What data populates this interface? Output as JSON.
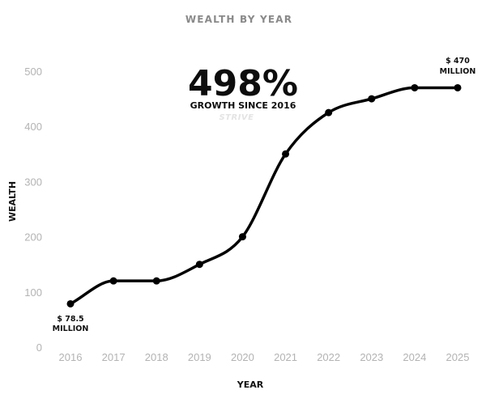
{
  "chart_data": {
    "type": "line",
    "title": "WEALTH BY YEAR",
    "xlabel": "YEAR",
    "ylabel": "WEALTH",
    "x": [
      "2016",
      "2017",
      "2018",
      "2019",
      "2020",
      "2021",
      "2022",
      "2023",
      "2024",
      "2025"
    ],
    "values": [
      78.5,
      120,
      120,
      150,
      200,
      350,
      425,
      450,
      470,
      470
    ],
    "ylim": [
      0,
      500
    ],
    "yticks": [
      0,
      100,
      200,
      300,
      400,
      500
    ],
    "grid": false,
    "line_color": "#000000",
    "annotations": {
      "headline": "498%",
      "subheadline": "GROWTH SINCE 2016",
      "brand": "STRIVE",
      "start_label_value": "$ 78.5",
      "start_label_unit": "MILLION",
      "end_label_value": "$ 470",
      "end_label_unit": "MILLION"
    }
  }
}
